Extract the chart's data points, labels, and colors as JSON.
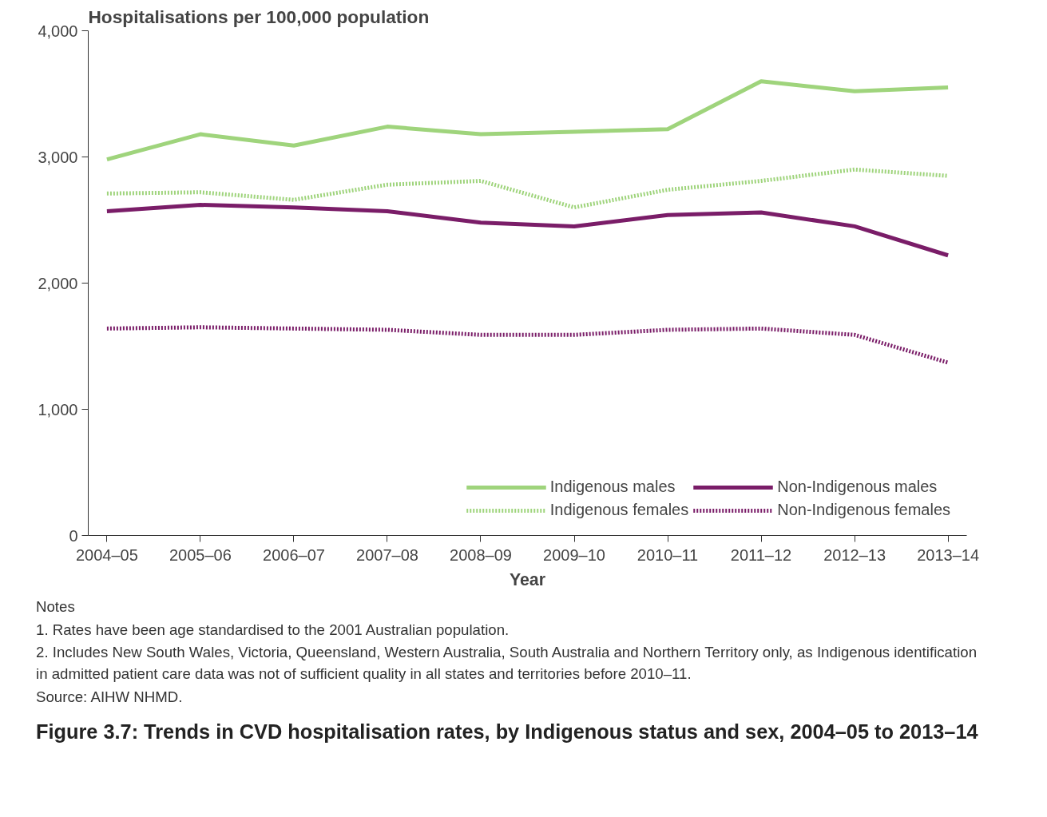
{
  "chart_data": {
    "type": "line",
    "title": "Figure 3.7: Trends in CVD hospitalisation rates, by Indigenous status and sex, 2004–05 to 2013–14",
    "ylabel": "Hospitalisations per 100,000 population",
    "xlabel": "Year",
    "categories": [
      "2004–05",
      "2005–06",
      "2006–07",
      "2007–08",
      "2008–09",
      "2009–10",
      "2010–11",
      "2011–12",
      "2012–13",
      "2013–14"
    ],
    "series": [
      {
        "name": "Indigenous males",
        "color": "#9fd47c",
        "line_style": "solid",
        "values": [
          2980,
          3180,
          3090,
          3240,
          3180,
          3200,
          3220,
          3600,
          3520,
          3550
        ]
      },
      {
        "name": "Indigenous females",
        "color": "#9fd47c",
        "line_style": "dotted",
        "values": [
          2710,
          2720,
          2660,
          2780,
          2810,
          2600,
          2740,
          2810,
          2900,
          2850
        ]
      },
      {
        "name": "Non-Indigenous males",
        "color": "#7a1d68",
        "line_style": "solid",
        "values": [
          2570,
          2620,
          2600,
          2570,
          2480,
          2450,
          2540,
          2560,
          2450,
          2220
        ]
      },
      {
        "name": "Non-Indigenous females",
        "color": "#7a1d68",
        "line_style": "dotted",
        "values": [
          1640,
          1650,
          1640,
          1630,
          1590,
          1590,
          1630,
          1640,
          1590,
          1370
        ]
      }
    ],
    "ylim": [
      0,
      4000
    ],
    "yticks": [
      {
        "value": 0,
        "label": "0"
      },
      {
        "value": 1000,
        "label": "1,000"
      },
      {
        "value": 2000,
        "label": "2,000"
      },
      {
        "value": 3000,
        "label": "3,000"
      },
      {
        "value": 4000,
        "label": "4,000"
      }
    ],
    "grid": false,
    "legend": "bottom right",
    "marker": "none",
    "annotations": [
      "Notes",
      "1.  Rates have been age standardised to the 2001 Australian population.",
      "2.  Includes New South Wales, Victoria, Queensland, Western Australia, South Australia and Northern Territory only, as Indigenous identification in admitted patient care data was not of sufficient quality in all states and territories before 2010–11.",
      "Source: AIHW NHMD."
    ]
  }
}
